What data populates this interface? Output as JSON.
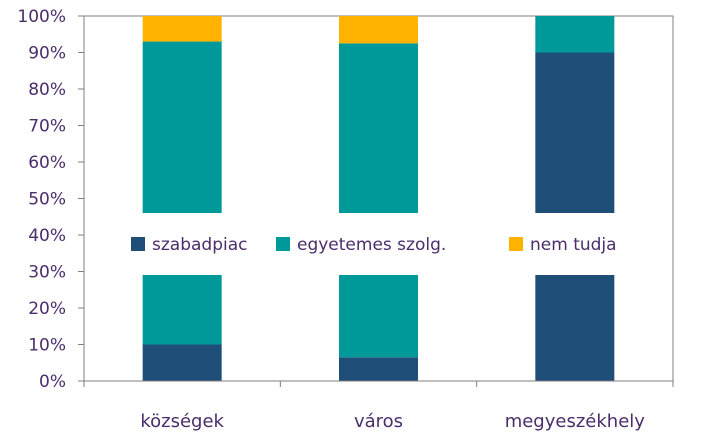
{
  "chart_data": {
    "type": "bar",
    "stacked": true,
    "categories": [
      "községek",
      "város",
      "megyeszékhely"
    ],
    "series": [
      {
        "name": "szabadpiac",
        "values": [
          10,
          6.5,
          90
        ],
        "color": "#1f4e79"
      },
      {
        "name": "egyetemes szolg.",
        "values": [
          83,
          86,
          10
        ],
        "color": "#009999"
      },
      {
        "name": "nem tudja",
        "values": [
          7,
          7.5,
          0
        ],
        "color": "#ffb300"
      }
    ],
    "ylim": [
      0,
      100
    ],
    "yticks": [
      "0%",
      "10%",
      "20%",
      "30%",
      "40%",
      "50%",
      "60%",
      "70%",
      "80%",
      "90%",
      "100%"
    ],
    "legend": "center",
    "grid": false,
    "title": "",
    "xlabel": "",
    "ylabel": ""
  }
}
